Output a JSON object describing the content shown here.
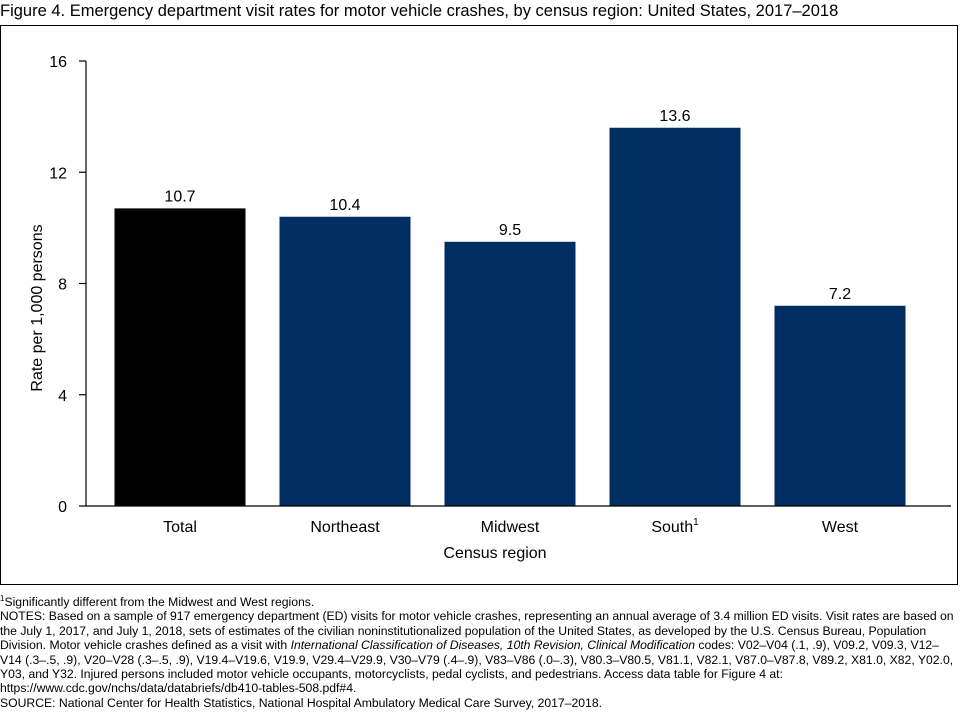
{
  "figure": {
    "title": "Figure 4. Emergency department visit rates for motor vehicle crashes, by census region: United States, 2017–2018"
  },
  "chart_data": {
    "type": "bar",
    "categories": [
      "Total",
      "Northeast",
      "Midwest",
      "South",
      "West"
    ],
    "category_superscripts": [
      "",
      "",
      "",
      "1",
      ""
    ],
    "values": [
      10.7,
      10.4,
      9.5,
      13.6,
      7.2
    ],
    "data_labels": [
      "10.7",
      "10.4",
      "9.5",
      "13.6",
      "7.2"
    ],
    "bar_colors": [
      "#000000",
      "#002d62",
      "#002d62",
      "#002d62",
      "#002d62"
    ],
    "xlabel": "Census region",
    "ylabel": "Rate per 1,000 persons",
    "ylim": [
      0,
      16
    ],
    "yticks": [
      0,
      4,
      8,
      12,
      16
    ],
    "grid": false,
    "legend": "none"
  },
  "notes": {
    "footnote_marker": "1",
    "footnote_text": "Significantly different from the Midwest and West regions.",
    "notes_text_1": "NOTES: Based on a sample of  917 emergency department (ED) visits for motor vehicle crashes, representing an annual average of 3.4 million ED visits. Visit rates are based on the July 1, 2017, and July 1, 2018, sets of estimates of the civilian noninstitutionalized population of the United States, as developed by the U.S. Census Bureau, Population Division. Motor vehicle crashes defined as a visit with ",
    "notes_italic": "International Classification of Diseases, 10th Revision, Clinical Modification",
    "notes_text_2": " codes: V02–V04 (.1, .9), V09.2, V09.3, V12–V14 (.3–.5, .9), V20–V28 (.3–.5, .9), V19.4–V19.6, V19.9, V29.4–V29.9, V30–V79 (.4–.9), V83–V86 (.0–.3), V80.3–V80.5, V81.1, V82.1, V87.0–V87.8, V89.2, X81.0, X82, Y02.0, Y03, and Y32. Injured persons included motor vehicle occupants, motorcyclists, pedal cyclists, and pedestrians. Access data table for Figure 4 at: https://www.cdc.gov/nchs/data/databriefs/db410-tables-508.pdf#4.",
    "source": "SOURCE: National Center for Health Statistics, National Hospital Ambulatory Medical Care Survey, 2017–2018."
  }
}
